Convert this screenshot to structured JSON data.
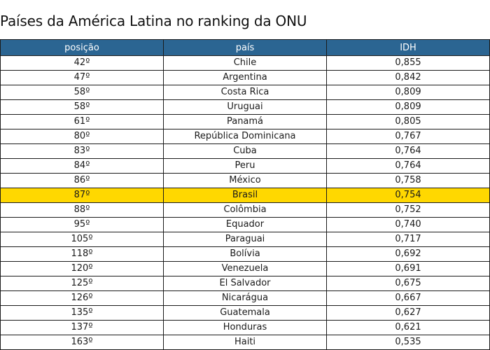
{
  "title": "Países da América Latina no ranking da ONU",
  "colors": {
    "header_bg": "#2b6592",
    "highlight_bg": "#ffd800"
  },
  "table": {
    "headers": [
      "posição",
      "país",
      "IDH"
    ],
    "highlight_country": "Brasil",
    "rows": [
      {
        "posicao": "42º",
        "pais": "Chile",
        "idh": "0,855"
      },
      {
        "posicao": "47º",
        "pais": "Argentina",
        "idh": "0,842"
      },
      {
        "posicao": "58º",
        "pais": "Costa Rica",
        "idh": "0,809"
      },
      {
        "posicao": "58º",
        "pais": "Uruguai",
        "idh": "0,809"
      },
      {
        "posicao": "61º",
        "pais": "Panamá",
        "idh": "0,805"
      },
      {
        "posicao": "80º",
        "pais": "República Dominicana",
        "idh": "0,767"
      },
      {
        "posicao": "83º",
        "pais": "Cuba",
        "idh": "0,764"
      },
      {
        "posicao": "84º",
        "pais": "Peru",
        "idh": "0,764"
      },
      {
        "posicao": "86º",
        "pais": "México",
        "idh": "0,758"
      },
      {
        "posicao": "87º",
        "pais": "Brasil",
        "idh": "0,754"
      },
      {
        "posicao": "88º",
        "pais": "Colômbia",
        "idh": "0,752"
      },
      {
        "posicao": "95º",
        "pais": "Equador",
        "idh": "0,740"
      },
      {
        "posicao": "105º",
        "pais": "Paraguai",
        "idh": "0,717"
      },
      {
        "posicao": "118º",
        "pais": "Bolívia",
        "idh": "0,692"
      },
      {
        "posicao": "120º",
        "pais": "Venezuela",
        "idh": "0,691"
      },
      {
        "posicao": "125º",
        "pais": "El Salvador",
        "idh": "0,675"
      },
      {
        "posicao": "126º",
        "pais": "Nicarágua",
        "idh": "0,667"
      },
      {
        "posicao": "135º",
        "pais": "Guatemala",
        "idh": "0,627"
      },
      {
        "posicao": "137º",
        "pais": "Honduras",
        "idh": "0,621"
      },
      {
        "posicao": "163º",
        "pais": "Haiti",
        "idh": "0,535"
      }
    ]
  }
}
